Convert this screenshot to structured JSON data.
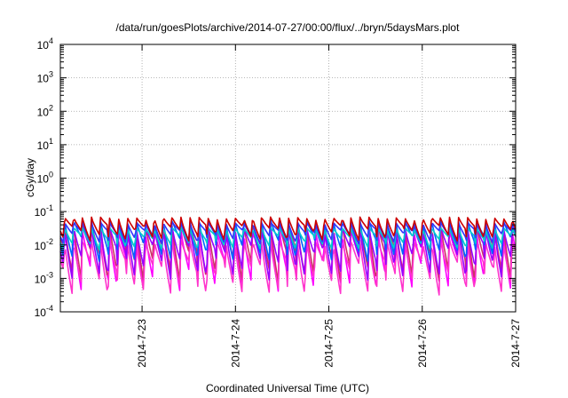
{
  "chart_data": {
    "type": "line",
    "title": "/data/run/goesPlots/archive/2014-07-27/00:00/flux/../bryn/5daysMars.plot",
    "xlabel": "Coordinated Universal Time (UTC)",
    "ylabel": "cGy/day",
    "yscale": "log",
    "ylim": [
      0.0001,
      10000
    ],
    "xlim": [
      "2014-07-22 03:00",
      "2014-07-27 00:00"
    ],
    "x_ticks": [
      "2014-7-23",
      "2014-7-24",
      "2014-7-25",
      "2014-7-26",
      "2014-7-27"
    ],
    "y_ticks": [
      {
        "base": "10",
        "exp": "-4"
      },
      {
        "base": "10",
        "exp": "-3"
      },
      {
        "base": "10",
        "exp": "-2"
      },
      {
        "base": "10",
        "exp": "-1"
      },
      {
        "base": "10",
        "exp": "0"
      },
      {
        "base": "10",
        "exp": "1"
      },
      {
        "base": "10",
        "exp": "2"
      },
      {
        "base": "10",
        "exp": "3"
      },
      {
        "base": "10",
        "exp": "4"
      }
    ],
    "grid": true,
    "legend": "none",
    "cycle_hours": 2.3,
    "series": [
      {
        "color": "#ff00ff",
        "peak": 0.03,
        "trough": 0.0006
      },
      {
        "color": "#cc3366",
        "peak": 0.05,
        "trough": 0.001
      },
      {
        "color": "#ff33cc",
        "peak": 0.015,
        "trough": 0.0004
      },
      {
        "color": "#9900ff",
        "peak": 0.04,
        "trough": 0.0012
      },
      {
        "color": "#0066ff",
        "peak": 0.06,
        "trough": 0.004
      },
      {
        "color": "#00cccc",
        "peak": 0.035,
        "trough": 0.008
      },
      {
        "color": "#3333ff",
        "peak": 0.05,
        "trough": 0.012
      },
      {
        "color": "#cc0000",
        "peak": 0.07,
        "trough": 0.015
      }
    ]
  }
}
